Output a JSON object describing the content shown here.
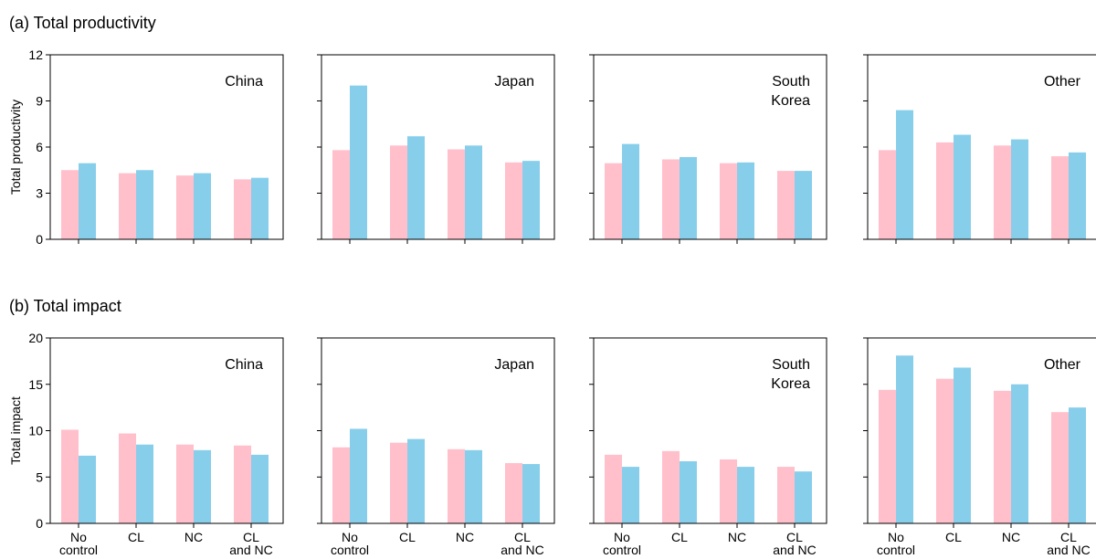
{
  "colors": {
    "series_a": "#ffc0cb",
    "series_b": "#87ceeb",
    "axis": "#000000"
  },
  "chart_data": [
    {
      "type": "bar",
      "row_title": "(a) Total productivity",
      "ylabel": "Total productivity",
      "ylim": [
        0,
        12
      ],
      "yticks": [
        "0",
        "3",
        "6",
        "9",
        "12"
      ],
      "categories": [
        "No control",
        "CL",
        "NC",
        "CL and NC"
      ],
      "panels": [
        {
          "label": "China",
          "series": [
            {
              "values": [
                4.5,
                4.3,
                4.15,
                3.9
              ]
            },
            {
              "values": [
                4.95,
                4.5,
                4.3,
                4.0
              ]
            }
          ]
        },
        {
          "label": "Japan",
          "series": [
            {
              "values": [
                5.8,
                6.1,
                5.85,
                5.0
              ]
            },
            {
              "values": [
                10.0,
                6.7,
                6.1,
                5.1
              ]
            }
          ]
        },
        {
          "label": "South Korea",
          "series": [
            {
              "values": [
                4.95,
                5.2,
                4.95,
                4.45
              ]
            },
            {
              "values": [
                6.2,
                5.35,
                5.0,
                4.45
              ]
            }
          ]
        },
        {
          "label": "Other",
          "series": [
            {
              "values": [
                5.8,
                6.3,
                6.1,
                5.4
              ]
            },
            {
              "values": [
                8.4,
                6.8,
                6.5,
                5.65
              ]
            }
          ]
        }
      ]
    },
    {
      "type": "bar",
      "row_title": "(b) Total impact",
      "ylabel": "Total impact",
      "ylim": [
        0,
        20
      ],
      "yticks": [
        "0",
        "5",
        "10",
        "15",
        "20"
      ],
      "categories": [
        "No control",
        "CL",
        "NC",
        "CL and NC"
      ],
      "panels": [
        {
          "label": "China",
          "series": [
            {
              "values": [
                10.1,
                9.7,
                8.5,
                8.4
              ]
            },
            {
              "values": [
                7.3,
                8.5,
                7.9,
                7.4
              ]
            }
          ]
        },
        {
          "label": "Japan",
          "series": [
            {
              "values": [
                8.2,
                8.7,
                8.0,
                6.5
              ]
            },
            {
              "values": [
                10.2,
                9.1,
                7.9,
                6.4
              ]
            }
          ]
        },
        {
          "label": "South Korea",
          "series": [
            {
              "values": [
                7.4,
                7.8,
                6.9,
                6.1
              ]
            },
            {
              "values": [
                6.1,
                6.7,
                6.1,
                5.6
              ]
            }
          ]
        },
        {
          "label": "Other",
          "series": [
            {
              "values": [
                14.4,
                15.6,
                14.3,
                12.0
              ]
            },
            {
              "values": [
                18.1,
                16.8,
                15.0,
                12.5
              ]
            }
          ]
        }
      ]
    }
  ]
}
